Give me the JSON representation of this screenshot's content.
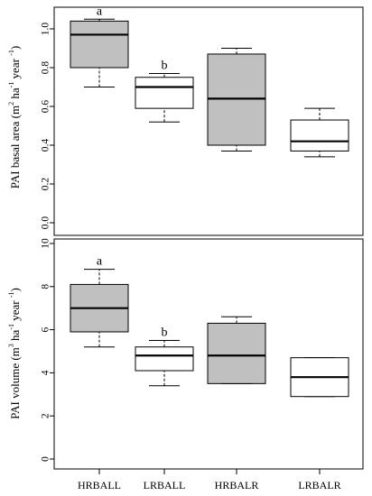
{
  "chart_data": [
    {
      "type": "box",
      "ylabel_parts": {
        "prefix": "PAI  basal area (m",
        "sup1": "2",
        "mid": " ha",
        "sup2": "-1",
        "mid2": " year ",
        "sup3": "-1",
        "suffix": ")"
      },
      "ylim": [
        0,
        1.05
      ],
      "yticks": [
        "0.0",
        "0.2",
        "0.4",
        "0.6",
        "0.8",
        "1.0"
      ],
      "boxes": [
        {
          "category": "HRBALL",
          "fill": "#c0c0c0",
          "min": 0.7,
          "q1": 0.8,
          "median": 0.97,
          "q3": 1.04,
          "max": 1.05,
          "letter": "a"
        },
        {
          "category": "LRBALL",
          "fill": "#ffffff",
          "min": 0.52,
          "q1": 0.59,
          "median": 0.7,
          "q3": 0.75,
          "max": 0.77,
          "letter": "b"
        },
        {
          "category": "HRBALR",
          "fill": "#c0c0c0",
          "min": 0.37,
          "q1": 0.4,
          "median": 0.64,
          "q3": 0.87,
          "max": 0.9,
          "letter": ""
        },
        {
          "category": "LRBALR",
          "fill": "#ffffff",
          "min": 0.34,
          "q1": 0.37,
          "median": 0.42,
          "q3": 0.53,
          "max": 0.59,
          "letter": ""
        }
      ]
    },
    {
      "type": "box",
      "ylabel_parts": {
        "prefix": "PAI volume (m",
        "sup1": "3",
        "mid": " ha",
        "sup2": "-1",
        "mid2": " year ",
        "sup3": "-1",
        "suffix": ")"
      },
      "ylim": [
        0,
        10
      ],
      "yticks": [
        "0",
        "2",
        "4",
        "6",
        "8",
        "10"
      ],
      "categories": [
        "HRBALL",
        "LRBALL",
        "HRBALR",
        "LRBALR"
      ],
      "boxes": [
        {
          "category": "HRBALL",
          "fill": "#c0c0c0",
          "min": 5.2,
          "q1": 5.9,
          "median": 7.0,
          "q3": 8.1,
          "max": 8.8,
          "letter": "a"
        },
        {
          "category": "LRBALL",
          "fill": "#ffffff",
          "min": 3.4,
          "q1": 4.1,
          "median": 4.8,
          "q3": 5.2,
          "max": 5.5,
          "letter": "b"
        },
        {
          "category": "HRBALR",
          "fill": "#c0c0c0",
          "min": 3.5,
          "q1": 3.5,
          "median": 4.8,
          "q3": 6.3,
          "max": 6.6,
          "letter": ""
        },
        {
          "category": "LRBALR",
          "fill": "#ffffff",
          "min": 2.9,
          "q1": 2.9,
          "median": 3.8,
          "q3": 4.7,
          "max": 4.7,
          "letter": ""
        }
      ]
    }
  ]
}
